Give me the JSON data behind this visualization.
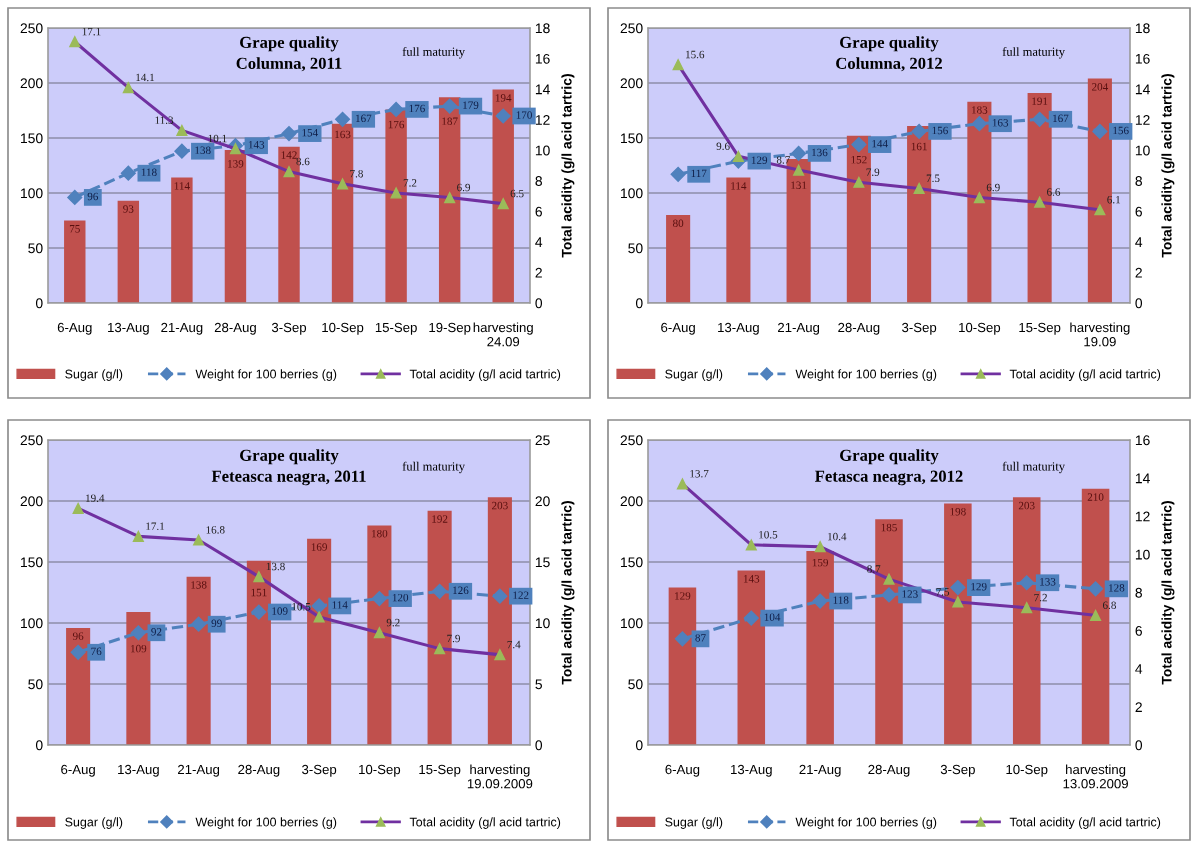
{
  "chart_data": [
    {
      "type": "bar",
      "title": "Grape quality\nColumna, 2011",
      "y2label": "Total acidity (g/l acid tartric)",
      "categories": [
        "6-Aug",
        "13-Aug",
        "21-Aug",
        "28-Aug",
        "3-Sep",
        "10-Sep",
        "15-Sep",
        "19-Sep",
        "harvesting\n24.09"
      ],
      "ylim": [
        0,
        250
      ],
      "yticks": [
        0,
        50,
        100,
        150,
        200,
        250
      ],
      "y2lim": [
        0,
        18
      ],
      "y2ticks": [
        0,
        2,
        4,
        6,
        8,
        10,
        12,
        14,
        16,
        18
      ],
      "grid": "y",
      "legend": "bottom",
      "data_labels": true,
      "annotations": [
        "full maturity"
      ],
      "series": [
        {
          "name": "Sugar (g/l)",
          "color": "#c0504d",
          "values": [
            75,
            93,
            114,
            139,
            142,
            163,
            176,
            187,
            194
          ]
        },
        {
          "name": "Weight for 100 berries (g)",
          "type": "line",
          "color": "#4f81bd",
          "marker": "diamond",
          "line_style": "dashed",
          "values": [
            96,
            118,
            138,
            143,
            154,
            167,
            176,
            179,
            170
          ]
        },
        {
          "name": "Total acidity (g/l acid tartric)",
          "type": "line",
          "color": "#7030a0",
          "marker": "triangle",
          "line_style": "solid",
          "axis": "y2",
          "values": [
            17.1,
            14.1,
            11.3,
            10.1,
            8.6,
            7.8,
            7.2,
            6.9,
            6.5
          ]
        }
      ]
    },
    {
      "type": "bar",
      "title": "Grape quality\nColumna, 2012",
      "y2label": "Total acidity (g/l acid tartric)",
      "categories": [
        "6-Aug",
        "13-Aug",
        "21-Aug",
        "28-Aug",
        "3-Sep",
        "10-Sep",
        "15-Sep",
        "harvesting\n19.09"
      ],
      "ylim": [
        0,
        250
      ],
      "yticks": [
        0,
        50,
        100,
        150,
        200,
        250
      ],
      "y2lim": [
        0,
        18
      ],
      "y2ticks": [
        0,
        2,
        4,
        6,
        8,
        10,
        12,
        14,
        16,
        18
      ],
      "grid": "y",
      "legend": "bottom",
      "data_labels": true,
      "annotations": [
        "full maturity"
      ],
      "series": [
        {
          "name": "Sugar (g/l)",
          "color": "#c0504d",
          "values": [
            80,
            114,
            131,
            152,
            161,
            183,
            191,
            204
          ]
        },
        {
          "name": "Weight for 100 berries (g)",
          "type": "line",
          "color": "#4f81bd",
          "marker": "diamond",
          "line_style": "dashed",
          "values": [
            117,
            129,
            136,
            144,
            156,
            163,
            167,
            156
          ]
        },
        {
          "name": "Total acidity (g/l acid tartric)",
          "type": "line",
          "color": "#7030a0",
          "marker": "triangle",
          "line_style": "solid",
          "axis": "y2",
          "values": [
            15.6,
            9.6,
            8.7,
            7.9,
            7.5,
            6.9,
            6.6,
            6.1
          ]
        }
      ]
    },
    {
      "type": "bar",
      "title": "Grape quality\nFeteasca neagra, 2011",
      "y2label": "Total acidity (g/l acid tartric)",
      "categories": [
        "6-Aug",
        "13-Aug",
        "21-Aug",
        "28-Aug",
        "3-Sep",
        "10-Sep",
        "15-Sep",
        "harvesting\n19.09.2009"
      ],
      "ylim": [
        0,
        250
      ],
      "yticks": [
        0,
        50,
        100,
        150,
        200,
        250
      ],
      "y2lim": [
        0,
        25
      ],
      "y2ticks": [
        0,
        5,
        10,
        15,
        20,
        25
      ],
      "grid": "y",
      "legend": "bottom",
      "data_labels": true,
      "annotations": [
        "full maturity"
      ],
      "series": [
        {
          "name": "Sugar (g/l)",
          "color": "#c0504d",
          "values": [
            96,
            109,
            138,
            151,
            169,
            180,
            192,
            203
          ]
        },
        {
          "name": "Weight for 100 berries (g)",
          "type": "line",
          "color": "#4f81bd",
          "marker": "diamond",
          "line_style": "dashed",
          "values": [
            76,
            92,
            99,
            109,
            114,
            120,
            126,
            122
          ]
        },
        {
          "name": "Total acidity (g/l acid tartric)",
          "type": "line",
          "color": "#7030a0",
          "marker": "triangle",
          "line_style": "solid",
          "axis": "y2",
          "values": [
            19.4,
            17.1,
            16.8,
            13.8,
            10.5,
            9.2,
            7.9,
            7.4
          ]
        }
      ]
    },
    {
      "type": "bar",
      "title": "Grape quality\nFetasca neagra, 2012",
      "y2label": "Total acidity (g/l acid tartric)",
      "categories": [
        "6-Aug",
        "13-Aug",
        "21-Aug",
        "28-Aug",
        "3-Sep",
        "10-Sep",
        "harvesting\n13.09.2009"
      ],
      "ylim": [
        0,
        250
      ],
      "yticks": [
        0,
        50,
        100,
        150,
        200,
        250
      ],
      "y2lim": [
        0,
        16
      ],
      "y2ticks": [
        0,
        2,
        4,
        6,
        8,
        10,
        12,
        14,
        16
      ],
      "grid": "y",
      "legend": "bottom",
      "data_labels": true,
      "annotations": [
        "full maturity"
      ],
      "series": [
        {
          "name": "Sugar (g/l)",
          "color": "#c0504d",
          "values": [
            129,
            143,
            159,
            185,
            198,
            203,
            210
          ]
        },
        {
          "name": "Weight for 100 berries (g)",
          "type": "line",
          "color": "#4f81bd",
          "marker": "diamond",
          "line_style": "dashed",
          "values": [
            87,
            104,
            118,
            123,
            129,
            133,
            128
          ]
        },
        {
          "name": "Total acidity (g/l acid tartric)",
          "type": "line",
          "color": "#7030a0",
          "marker": "triangle",
          "line_style": "solid",
          "axis": "y2",
          "values": [
            13.7,
            10.5,
            10.4,
            8.7,
            7.5,
            7.2,
            6.8
          ]
        }
      ]
    }
  ]
}
